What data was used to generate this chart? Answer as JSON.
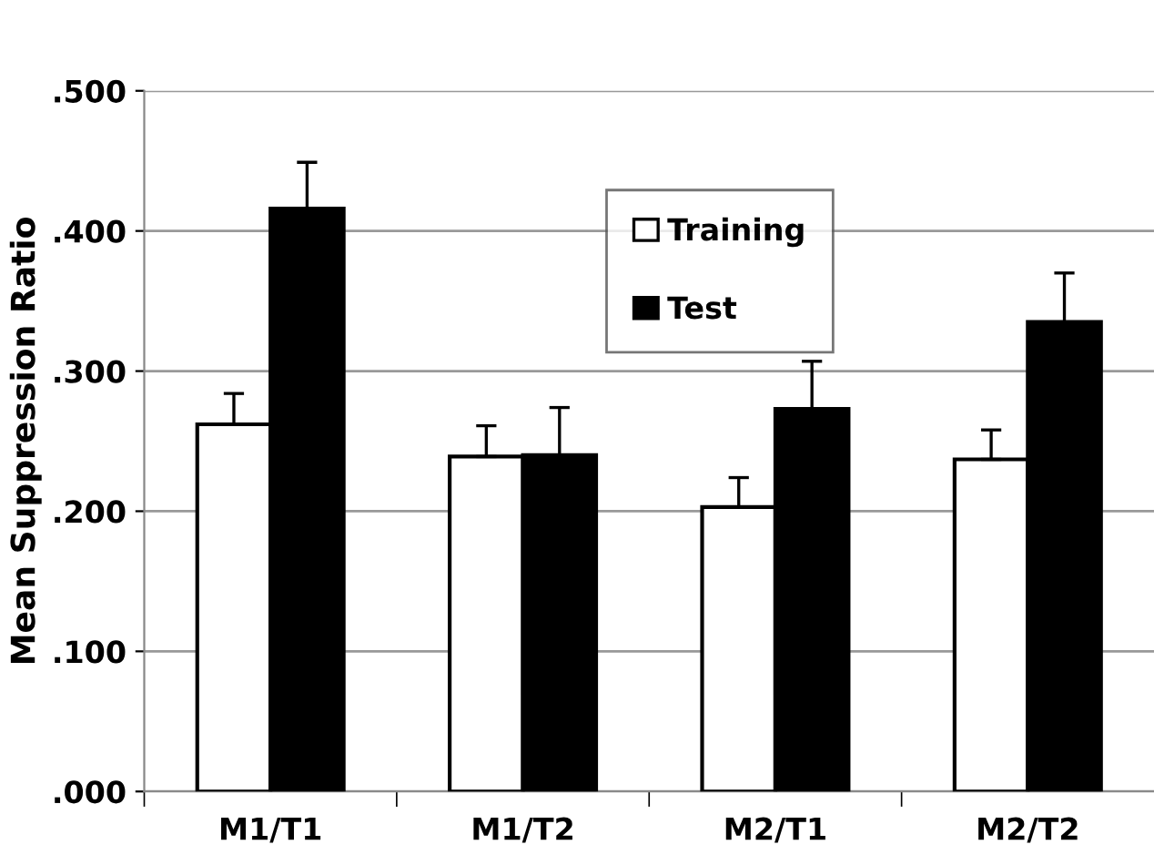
{
  "chart_data": {
    "type": "bar",
    "ylabel": "Mean Suppression Ratio",
    "categories": [
      "M1/T1",
      "M1/T2",
      "M2/T1",
      "M2/T2"
    ],
    "series": [
      {
        "name": "Training",
        "color": "#ffffff",
        "values": [
          0.262,
          0.239,
          0.203,
          0.237
        ],
        "errors": [
          [
            0.262,
            0.284
          ],
          [
            0.239,
            0.261
          ],
          [
            0.203,
            0.224
          ],
          [
            0.237,
            0.258
          ]
        ]
      },
      {
        "name": "Test",
        "color": "#000000",
        "values": [
          0.416,
          0.24,
          0.273,
          0.335
        ],
        "errors": [
          [
            0.416,
            0.449
          ],
          [
            0.24,
            0.274
          ],
          [
            0.273,
            0.307
          ],
          [
            0.335,
            0.37
          ]
        ]
      }
    ],
    "ylim": [
      0,
      0.5
    ],
    "yticks": [
      {
        "value": 0,
        "label": ".000"
      },
      {
        "value": 0.1,
        "label": ".100"
      },
      {
        "value": 0.2,
        "label": ".200"
      },
      {
        "value": 0.3,
        "label": ".300"
      },
      {
        "value": 0.4,
        "label": ".400"
      },
      {
        "value": 0.5,
        "label": ".500"
      }
    ],
    "grid": "y",
    "legend": "top"
  }
}
